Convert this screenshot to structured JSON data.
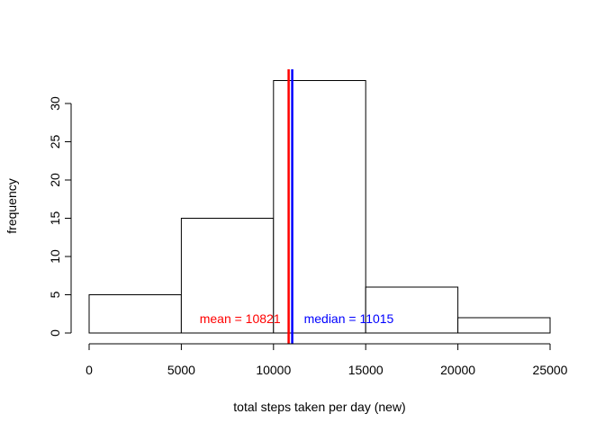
{
  "chart_data": {
    "type": "bar",
    "title": "",
    "xlabel": "total steps taken per day (new)",
    "ylabel": "frequency",
    "bins": [
      {
        "start": 0,
        "end": 5000,
        "count": 5
      },
      {
        "start": 5000,
        "end": 10000,
        "count": 15
      },
      {
        "start": 10000,
        "end": 15000,
        "count": 33
      },
      {
        "start": 15000,
        "end": 20000,
        "count": 6
      },
      {
        "start": 20000,
        "end": 25000,
        "count": 2
      }
    ],
    "xlim": [
      0,
      25000
    ],
    "ylim": [
      0,
      33
    ],
    "x_ticks": [
      0,
      5000,
      10000,
      15000,
      20000,
      25000
    ],
    "y_ticks": [
      0,
      5,
      10,
      15,
      20,
      25,
      30
    ],
    "grid": false,
    "reference_lines": [
      {
        "name": "mean",
        "value": 10821,
        "color": "#ff0000",
        "label": "mean =  10821"
      },
      {
        "name": "median",
        "value": 11015,
        "color": "#0000ff",
        "label": "median =  11015"
      }
    ],
    "bar_fill": "#ffffff",
    "bar_stroke": "#000000"
  }
}
